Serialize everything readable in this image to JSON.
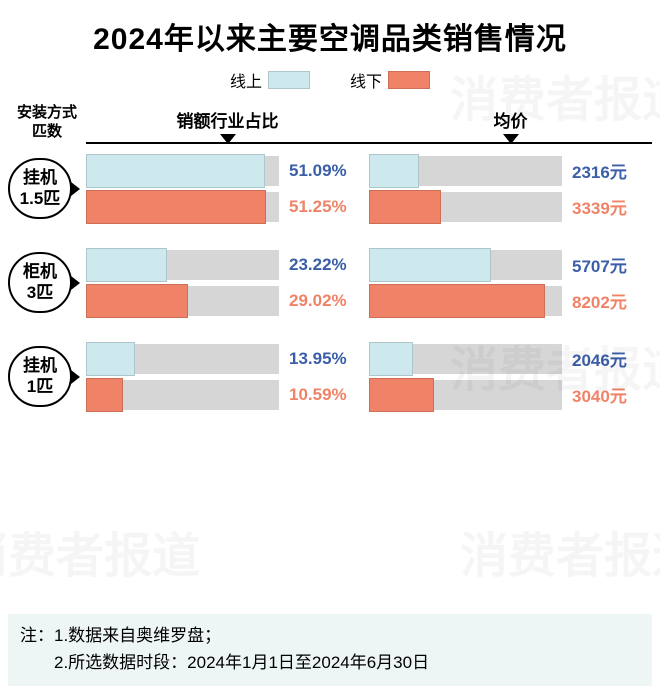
{
  "title": "2024年以来主要空调品类销售情况",
  "title_fontsize": 30,
  "title_color": "#000000",
  "legend": {
    "online": {
      "label": "线上",
      "color": "#cde9ed"
    },
    "offline": {
      "label": "线下",
      "color": "#f08367"
    }
  },
  "columns": {
    "label_head_line1": "安装方式",
    "label_head_line2": "匹数",
    "share_head": "销额行业占比",
    "price_head": "均价"
  },
  "share_max": 55,
  "price_max": 9000,
  "track_bg": "#d6d6d6",
  "online_text_color": "#3a5ea8",
  "offline_text_color": "#f08367",
  "footer_bg": "#eef5f5",
  "footer_line1": "注：1.数据来自奥维罗盘；",
  "footer_line2": "　　2.所选数据时段：2024年1月1日至2024年6月30日",
  "watermark_text": "消费者报道",
  "price_suffix": "元",
  "rows": [
    {
      "label_line1": "挂机",
      "label_line2": "1.5匹",
      "online": {
        "share": 51.09,
        "price": 2316
      },
      "offline": {
        "share": 51.25,
        "price": 3339
      }
    },
    {
      "label_line1": "柜机",
      "label_line2": "3匹",
      "online": {
        "share": 23.22,
        "price": 5707
      },
      "offline": {
        "share": 29.02,
        "price": 8202
      }
    },
    {
      "label_line1": "挂机",
      "label_line2": "1匹",
      "online": {
        "share": 13.95,
        "price": 2046
      },
      "offline": {
        "share": 10.59,
        "price": 3040
      }
    }
  ]
}
